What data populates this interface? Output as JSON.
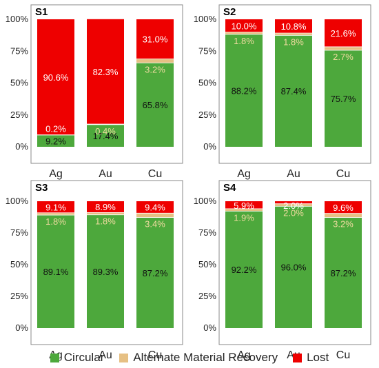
{
  "colors": {
    "circular": "#4da83c",
    "alt": "#e6c084",
    "lost": "#ee0000",
    "text_dark": "#111111",
    "text_light": "#ffffff",
    "text_alt": "#f0dba0"
  },
  "legend": [
    {
      "key": "circular",
      "label": "Circular"
    },
    {
      "key": "alt",
      "label": "Alternate Material Recovery"
    },
    {
      "key": "lost",
      "label": "Lost"
    }
  ],
  "chart_data": [
    {
      "type": "bar",
      "stacked": true,
      "title": "S1",
      "categories": [
        "Ag",
        "Au",
        "Cu"
      ],
      "y_ticks": [
        "0%",
        "25%",
        "50%",
        "75%",
        "100%"
      ],
      "ylim": [
        0,
        100
      ],
      "series": [
        {
          "name": "Circular",
          "values": [
            9.2,
            17.4,
            65.8
          ],
          "labels": [
            "9.2%",
            "17.4%",
            "65.8%"
          ]
        },
        {
          "name": "Alternate Material Recovery",
          "values": [
            0.2,
            0.4,
            3.2
          ],
          "labels": [
            "0.2%",
            "0.4%",
            "3.2%"
          ]
        },
        {
          "name": "Lost",
          "values": [
            90.6,
            82.3,
            31.0
          ],
          "labels": [
            "90.6%",
            "82.3%",
            "31.0%"
          ]
        }
      ]
    },
    {
      "type": "bar",
      "stacked": true,
      "title": "S2",
      "categories": [
        "Ag",
        "Au",
        "Cu"
      ],
      "y_ticks": [
        "0%",
        "25%",
        "50%",
        "75%",
        "100%"
      ],
      "ylim": [
        0,
        100
      ],
      "series": [
        {
          "name": "Circular",
          "values": [
            88.2,
            87.4,
            75.7
          ],
          "labels": [
            "88.2%",
            "87.4%",
            "75.7%"
          ]
        },
        {
          "name": "Alternate Material Recovery",
          "values": [
            1.8,
            1.8,
            2.7
          ],
          "labels": [
            "1.8%",
            "1.8%",
            "2.7%"
          ]
        },
        {
          "name": "Lost",
          "values": [
            10.0,
            10.8,
            21.6
          ],
          "labels": [
            "10.0%",
            "10.8%",
            "21.6%"
          ]
        }
      ]
    },
    {
      "type": "bar",
      "stacked": true,
      "title": "S3",
      "categories": [
        "Ag",
        "Au",
        "Cu"
      ],
      "y_ticks": [
        "0%",
        "25%",
        "50%",
        "75%",
        "100%"
      ],
      "ylim": [
        0,
        100
      ],
      "series": [
        {
          "name": "Circular",
          "values": [
            89.1,
            89.3,
            87.2
          ],
          "labels": [
            "89.1%",
            "89.3%",
            "87.2%"
          ]
        },
        {
          "name": "Alternate Material Recovery",
          "values": [
            1.8,
            1.8,
            3.4
          ],
          "labels": [
            "1.8%",
            "1.8%",
            "3.4%"
          ]
        },
        {
          "name": "Lost",
          "values": [
            9.1,
            8.9,
            9.4
          ],
          "labels": [
            "9.1%",
            "8.9%",
            "9.4%"
          ]
        }
      ]
    },
    {
      "type": "bar",
      "stacked": true,
      "title": "S4",
      "categories": [
        "Ag",
        "Au",
        "Cu"
      ],
      "y_ticks": [
        "0%",
        "25%",
        "50%",
        "75%",
        "100%"
      ],
      "ylim": [
        0,
        100
      ],
      "series": [
        {
          "name": "Circular",
          "values": [
            92.2,
            96.0,
            87.2
          ],
          "labels": [
            "92.2%",
            "96.0%",
            "87.2%"
          ]
        },
        {
          "name": "Alternate Material Recovery",
          "values": [
            1.9,
            2.0,
            3.2
          ],
          "labels": [
            "1.9%",
            "2.0%",
            "3.2%"
          ]
        },
        {
          "name": "Lost",
          "values": [
            5.9,
            2.0,
            9.6
          ],
          "labels": [
            "5.9%",
            "2.0%",
            "9.6%"
          ]
        }
      ]
    }
  ]
}
